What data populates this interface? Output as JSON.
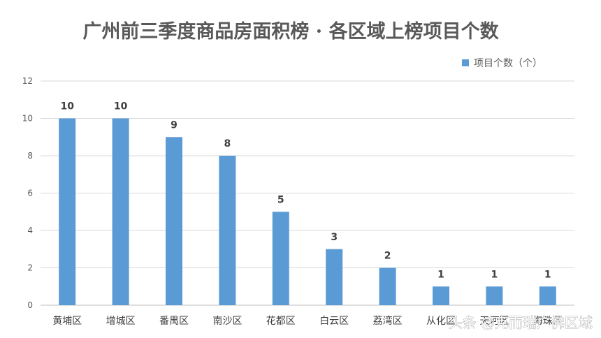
{
  "chart_data": {
    "type": "bar",
    "title": "广州前三季度商品房面积榜 · 各区域上榜项目个数",
    "categories": [
      "黄埔区",
      "增城区",
      "番禺区",
      "南沙区",
      "花都区",
      "白云区",
      "荔湾区",
      "从化区",
      "天河区",
      "海珠区"
    ],
    "series": [
      {
        "name": "项目个数（个）",
        "values": [
          10,
          10,
          9,
          8,
          5,
          3,
          2,
          1,
          1,
          1
        ]
      }
    ],
    "ylim": [
      0,
      12
    ],
    "yticks": [
      0,
      2,
      4,
      6,
      8,
      10,
      12
    ],
    "grid": true,
    "legend_position": "top-right",
    "bar_color": "#5B9BD5"
  },
  "watermark": "头条 @克而瑞广佛区域"
}
